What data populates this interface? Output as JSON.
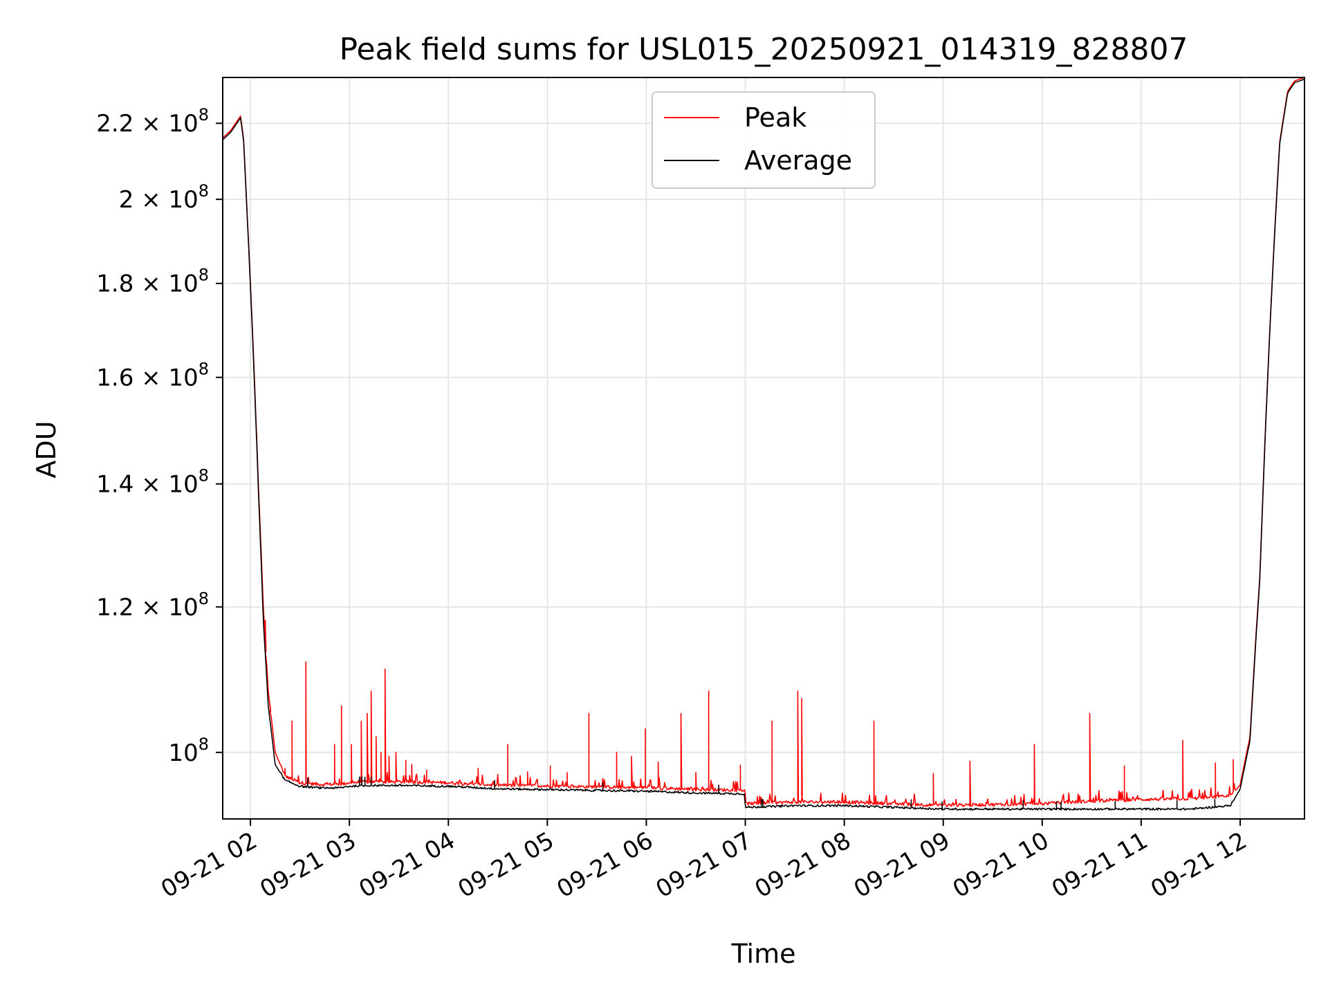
{
  "chart_data": {
    "type": "line",
    "title": "Peak field sums for USL015_20250921_014319_828807",
    "xlabel": "Time",
    "ylabel": "ADU",
    "yscale": "log",
    "ylim": [
      92000000,
      233000000
    ],
    "xlim_hours": [
      1.72,
      12.65
    ],
    "grid": true,
    "legend": {
      "position": "top-center"
    },
    "x_ticks": [
      {
        "hour": 2,
        "label": "09-21 02"
      },
      {
        "hour": 3,
        "label": "09-21 03"
      },
      {
        "hour": 4,
        "label": "09-21 04"
      },
      {
        "hour": 5,
        "label": "09-21 05"
      },
      {
        "hour": 6,
        "label": "09-21 06"
      },
      {
        "hour": 7,
        "label": "09-21 07"
      },
      {
        "hour": 8,
        "label": "09-21 08"
      },
      {
        "hour": 9,
        "label": "09-21 09"
      },
      {
        "hour": 10,
        "label": "09-21 10"
      },
      {
        "hour": 11,
        "label": "09-21 11"
      },
      {
        "hour": 12,
        "label": "09-21 12"
      }
    ],
    "y_ticks": [
      {
        "value": 100000000,
        "label": "10",
        "exp": "8"
      },
      {
        "value": 120000000,
        "label": "1.2 × 10",
        "exp": "8"
      },
      {
        "value": 140000000,
        "label": "1.4 × 10",
        "exp": "8"
      },
      {
        "value": 160000000,
        "label": "1.6 × 10",
        "exp": "8"
      },
      {
        "value": 180000000,
        "label": "1.8 × 10",
        "exp": "8"
      },
      {
        "value": 200000000,
        "label": "2 × 10",
        "exp": "8"
      },
      {
        "value": 220000000,
        "label": "2.2 × 10",
        "exp": "8"
      }
    ],
    "series": [
      {
        "name": "Peak",
        "color": "#ff0000",
        "x": [
          1.72,
          1.8,
          1.9,
          1.93,
          1.97,
          2.03,
          2.08,
          2.13,
          2.18,
          2.25,
          2.35,
          2.5,
          2.7,
          2.9,
          3.0,
          3.2,
          3.5,
          4.0,
          4.5,
          5.0,
          5.5,
          6.0,
          6.5,
          6.99,
          7.0,
          7.5,
          8.0,
          8.5,
          9.0,
          9.5,
          10.0,
          10.5,
          11.0,
          11.5,
          11.9,
          12.0,
          12.1,
          12.2,
          12.3,
          12.4,
          12.48,
          12.55,
          12.65
        ],
        "y": [
          216000000,
          218000000,
          222000000,
          216000000,
          195000000,
          165000000,
          140000000,
          120000000,
          108000000,
          100000000,
          97000000,
          96200000,
          96000000,
          96000000,
          96200000,
          96300000,
          96300000,
          96200000,
          95900000,
          95800000,
          95700000,
          95600000,
          95400000,
          95300000,
          93700000,
          93900000,
          93900000,
          93700000,
          93500000,
          93600000,
          93700000,
          94000000,
          94200000,
          94300000,
          94600000,
          96000000,
          102000000,
          125000000,
          170000000,
          215000000,
          229000000,
          232000000,
          233000000
        ],
        "spikes": [
          [
            2.15,
            118000000
          ],
          [
            2.2,
            106000000
          ],
          [
            2.35,
            98000000
          ],
          [
            2.42,
            104000000
          ],
          [
            2.56,
            112000000
          ],
          [
            2.85,
            101000000
          ],
          [
            2.92,
            106000000
          ],
          [
            3.02,
            101000000
          ],
          [
            3.12,
            104000000
          ],
          [
            3.18,
            105000000
          ],
          [
            3.22,
            108000000
          ],
          [
            3.27,
            102000000
          ],
          [
            3.32,
            100000000
          ],
          [
            3.36,
            111000000
          ],
          [
            3.4,
            99500000
          ],
          [
            3.47,
            100000000
          ],
          [
            3.57,
            99000000
          ],
          [
            3.63,
            98500000
          ],
          [
            3.78,
            97800000
          ],
          [
            4.3,
            98000000
          ],
          [
            4.6,
            101000000
          ],
          [
            4.8,
            97600000
          ],
          [
            5.03,
            98300000
          ],
          [
            5.2,
            97500000
          ],
          [
            5.42,
            105000000
          ],
          [
            5.7,
            100000000
          ],
          [
            5.85,
            99500000
          ],
          [
            5.99,
            103000000
          ],
          [
            6.12,
            98800000
          ],
          [
            6.35,
            105000000
          ],
          [
            6.5,
            97500000
          ],
          [
            6.63,
            108000000
          ],
          [
            6.95,
            98400000
          ],
          [
            7.27,
            104000000
          ],
          [
            7.53,
            108000000
          ],
          [
            7.57,
            107000000
          ],
          [
            8.3,
            104000000
          ],
          [
            8.9,
            97400000
          ],
          [
            9.27,
            98900000
          ],
          [
            9.92,
            101000000
          ],
          [
            10.48,
            105000000
          ],
          [
            10.83,
            98300000
          ],
          [
            11.42,
            101500000
          ],
          [
            11.75,
            98700000
          ],
          [
            11.93,
            99100000
          ]
        ]
      },
      {
        "name": "Average",
        "color": "#000000",
        "x": [
          1.72,
          1.8,
          1.9,
          1.93,
          1.97,
          2.03,
          2.08,
          2.13,
          2.18,
          2.25,
          2.35,
          2.5,
          2.7,
          2.9,
          3.0,
          3.2,
          3.5,
          4.0,
          4.5,
          5.0,
          5.5,
          6.0,
          6.5,
          6.99,
          7.0,
          7.5,
          8.0,
          8.5,
          9.0,
          9.5,
          10.0,
          10.5,
          11.0,
          11.5,
          11.9,
          12.0,
          12.1,
          12.2,
          12.3,
          12.4,
          12.48,
          12.55,
          12.65
        ],
        "y": [
          215500000,
          217500000,
          221500000,
          215500000,
          194500000,
          164000000,
          139000000,
          118000000,
          106000000,
          98500000,
          96500000,
          95800000,
          95600000,
          95600000,
          95800000,
          95900000,
          95900000,
          95800000,
          95500000,
          95400000,
          95300000,
          95200000,
          95000000,
          94900000,
          93300000,
          93500000,
          93500000,
          93300000,
          93100000,
          93100000,
          93100000,
          93100000,
          93100000,
          93100000,
          93500000,
          95500000,
          101500000,
          124500000,
          169500000,
          214500000,
          228500000,
          231500000,
          232500000
        ]
      }
    ]
  }
}
